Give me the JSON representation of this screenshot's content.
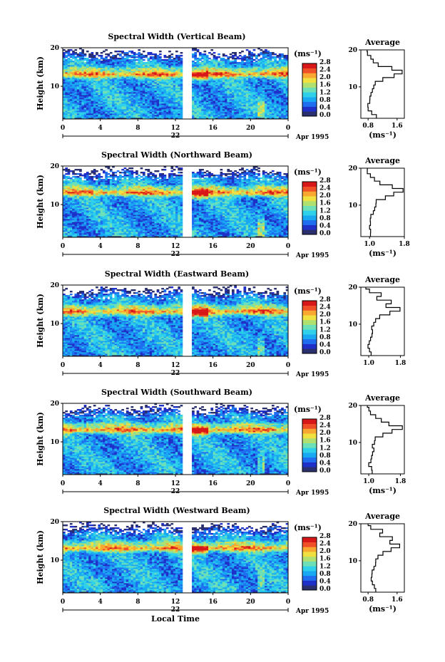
{
  "colorbar_unit": "(ms⁻¹)",
  "colorbar_ticks": [
    "0.0",
    "0.4",
    "0.8",
    "1.2",
    "1.6",
    "2.0",
    "2.4",
    "2.8"
  ],
  "colorbar_colors": [
    "#2a2f6e",
    "#1f30c8",
    "#1f6ef0",
    "#19a8f2",
    "#2fd0ea",
    "#6ee0b8",
    "#b0e070",
    "#f0e040",
    "#f8a830",
    "#f05028",
    "#d81818"
  ],
  "y_label": "Height (km)",
  "x_label": "Local Time",
  "date_day": "22",
  "date_suffix": "Apr 1995",
  "average_title": "Average",
  "average_unit": "(ms⁻¹)",
  "chart_data": [
    {
      "type": "heatmap",
      "title": "Spectral Width (Vertical Beam)",
      "xlabel": "",
      "ylabel": "Height (km)",
      "xlim": [
        0,
        24
      ],
      "ylim": [
        1.5,
        20
      ],
      "xticks": [
        "0",
        "4",
        "8",
        "12",
        "16",
        "20",
        "0"
      ],
      "yticks": [
        "10",
        "20"
      ],
      "color_scale": [
        0.0,
        2.8
      ],
      "data_gap_hours": [
        12.8,
        13.8
      ],
      "average_profile": {
        "title": "Average",
        "xlabel": "(ms⁻¹)",
        "xticks": [
          "0.8",
          "1.6"
        ],
        "xlim": [
          0.6,
          1.8
        ],
        "yticks": [
          "10",
          "20"
        ],
        "ylim": [
          1.5,
          20
        ],
        "height_km": [
          2,
          3,
          4,
          5,
          6,
          7,
          8,
          9,
          10,
          11,
          12,
          13,
          14,
          15,
          16,
          17,
          18,
          19,
          20
        ],
        "width": [
          1.0,
          0.9,
          0.82,
          0.8,
          0.82,
          0.85,
          0.88,
          0.92,
          0.95,
          1.0,
          1.2,
          1.5,
          1.75,
          1.45,
          1.05,
          0.95,
          0.85,
          0.8,
          0.8
        ]
      }
    },
    {
      "type": "heatmap",
      "title": "Spectral Width (Northward Beam)",
      "xlabel": "",
      "ylabel": "Height (km)",
      "xlim": [
        0,
        24
      ],
      "ylim": [
        1.5,
        20
      ],
      "xticks": [
        "0",
        "4",
        "8",
        "12",
        "16",
        "20",
        "0"
      ],
      "yticks": [
        "10",
        "20"
      ],
      "color_scale": [
        0.0,
        2.8
      ],
      "data_gap_hours": [
        12.8,
        13.8
      ],
      "average_profile": {
        "title": "Average",
        "xlabel": "(ms⁻¹)",
        "xticks": [
          "1.0",
          "1.8"
        ],
        "xlim": [
          0.8,
          1.8
        ],
        "yticks": [
          "10",
          "20"
        ],
        "ylim": [
          1.5,
          20
        ],
        "height_km": [
          2,
          3,
          4,
          5,
          6,
          7,
          8,
          9,
          10,
          11,
          12,
          13,
          14,
          15,
          16,
          17,
          18,
          19,
          20
        ],
        "width": [
          1.05,
          1.0,
          0.98,
          1.02,
          1.0,
          1.05,
          1.07,
          1.1,
          1.13,
          1.18,
          1.35,
          1.55,
          1.75,
          1.5,
          1.25,
          1.1,
          1.0,
          0.97,
          0.95
        ]
      }
    },
    {
      "type": "heatmap",
      "title": "Spectral Width (Eastward Beam)",
      "xlabel": "",
      "ylabel": "Height (km)",
      "xlim": [
        0,
        24
      ],
      "ylim": [
        1.5,
        20
      ],
      "xticks": [
        "0",
        "4",
        "8",
        "12",
        "16",
        "20",
        "0"
      ],
      "yticks": [
        "10",
        "20"
      ],
      "color_scale": [
        0.0,
        2.8
      ],
      "data_gap_hours": [
        12.8,
        13.8
      ],
      "average_profile": {
        "title": "Average",
        "xlabel": "",
        "xticks": [
          "1.0",
          "1.8"
        ],
        "xlim": [
          0.8,
          1.9
        ],
        "yticks": [
          "10",
          "20"
        ],
        "ylim": [
          1.5,
          20
        ],
        "height_km": [
          2,
          3,
          4,
          5,
          6,
          7,
          8,
          9,
          10,
          11,
          12,
          13,
          14,
          15,
          16,
          17,
          18,
          19,
          20
        ],
        "width": [
          1.08,
          1.02,
          1.0,
          1.03,
          1.04,
          1.06,
          1.08,
          1.1,
          1.12,
          1.15,
          1.3,
          1.55,
          1.8,
          1.45,
          1.55,
          1.2,
          1.3,
          1.0,
          0.95
        ]
      }
    },
    {
      "type": "heatmap",
      "title": "Spectral Width (Southward Beam)",
      "xlabel": "",
      "ylabel": "Height (km)",
      "xlim": [
        0,
        24
      ],
      "ylim": [
        1.5,
        20
      ],
      "xticks": [
        "0",
        "4",
        "8",
        "12",
        "16",
        "20",
        "0"
      ],
      "yticks": [
        "10",
        "20"
      ],
      "color_scale": [
        0.0,
        2.8
      ],
      "data_gap_hours": [
        12.8,
        13.8
      ],
      "average_profile": {
        "title": "Average",
        "xlabel": "(ms⁻¹)",
        "xticks": [
          "1.0",
          "1.8"
        ],
        "xlim": [
          0.8,
          1.9
        ],
        "yticks": [
          "10",
          "20"
        ],
        "ylim": [
          1.5,
          20
        ],
        "height_km": [
          2,
          3,
          4,
          5,
          6,
          7,
          8,
          9,
          10,
          11,
          12,
          13,
          14,
          15,
          16,
          17,
          18,
          19,
          20
        ],
        "width": [
          1.1,
          1.05,
          1.02,
          1.05,
          1.06,
          1.08,
          1.1,
          1.12,
          1.14,
          1.18,
          1.35,
          1.6,
          1.85,
          1.5,
          1.3,
          1.15,
          1.05,
          1.0,
          0.95
        ]
      }
    },
    {
      "type": "heatmap",
      "title": "Spectral Width (Westward Beam)",
      "xlabel": "Local Time",
      "ylabel": "Height (km)",
      "xlim": [
        0,
        24
      ],
      "ylim": [
        1.5,
        20
      ],
      "xticks": [
        "0",
        "4",
        "8",
        "12",
        "16",
        "20",
        "0"
      ],
      "yticks": [
        "10",
        "20"
      ],
      "color_scale": [
        0.0,
        2.8
      ],
      "data_gap_hours": [
        12.8,
        13.8
      ],
      "average_profile": {
        "title": "Average",
        "xlabel": "(ms⁻¹)",
        "xticks": [
          "0.8",
          "1.6"
        ],
        "xlim": [
          0.6,
          1.8
        ],
        "yticks": [
          "10",
          "20"
        ],
        "ylim": [
          1.5,
          20
        ],
        "height_km": [
          2,
          3,
          4,
          5,
          6,
          7,
          8,
          9,
          10,
          11,
          12,
          13,
          14,
          15,
          16,
          17,
          18,
          19,
          20
        ],
        "width": [
          1.0,
          0.95,
          0.9,
          0.88,
          0.9,
          0.92,
          0.95,
          0.98,
          1.0,
          1.05,
          1.2,
          1.45,
          1.7,
          1.4,
          1.5,
          1.1,
          1.2,
          0.85,
          0.8
        ]
      }
    }
  ]
}
